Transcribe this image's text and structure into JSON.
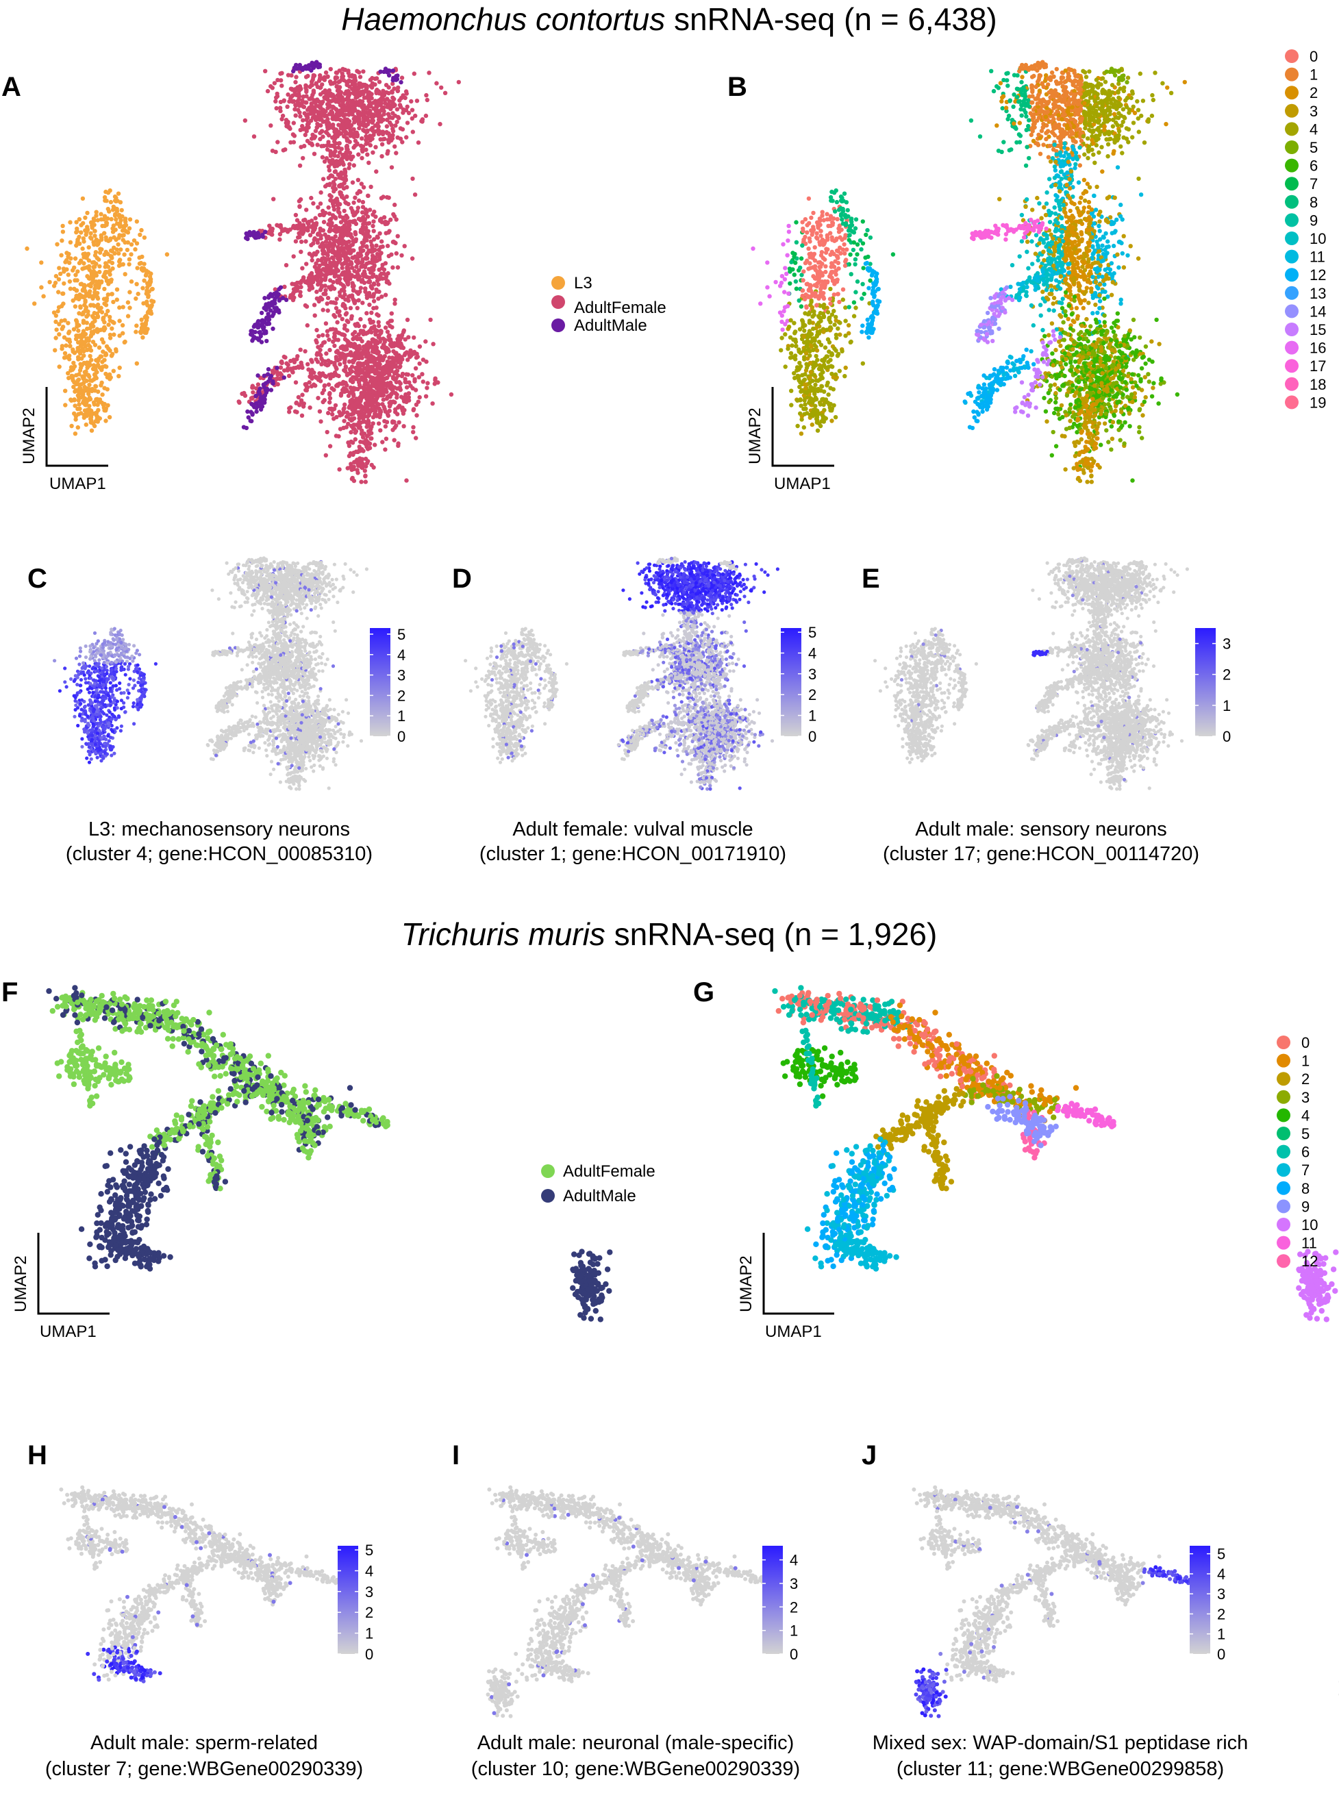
{
  "sections": [
    {
      "species": "Haemonchus contortus",
      "suffix": " snRNA-seq (n = 6,438)"
    },
    {
      "species": "Trichuris muris",
      "suffix": " snRNA-seq (n = 1,926)"
    }
  ],
  "axes": {
    "x": "UMAP1",
    "y": "UMAP2"
  },
  "colors": {
    "hc_clusters": [
      "#F8766D",
      "#EA8331",
      "#D89000",
      "#C09B00",
      "#A3A500",
      "#7CAE00",
      "#39B600",
      "#00BB4E",
      "#00BF7D",
      "#00C1A3",
      "#00BFC4",
      "#00BAE0",
      "#00B0F6",
      "#35A2FF",
      "#9590FF",
      "#C77CFF",
      "#E76BF3",
      "#FA62DB",
      "#FF62BC",
      "#FF6C91"
    ],
    "tm_clusters": [
      "#F8766D",
      "#E18A00",
      "#BE9C00",
      "#8CAB00",
      "#24B700",
      "#00BE70",
      "#00C1AB",
      "#00BBDA",
      "#00ACFC",
      "#8B93FF",
      "#D575FE",
      "#F962DD",
      "#FF65AC"
    ],
    "hc_stages": {
      "L3": "#F5A43A",
      "AdultFemale": "#D0466D",
      "AdultMale": "#6A1BA3"
    },
    "tm_stages": {
      "AdultFemale": "#7FD653",
      "AdultMale": "#353C78"
    },
    "expr_low": "#D3D3D3",
    "expr_high": "#2B1BFF"
  },
  "chart_data": [
    {
      "id": "A",
      "type": "scatter",
      "letter": "A",
      "color_by": "stage",
      "legend_position": "right",
      "legend": [
        {
          "name": "L3",
          "color": "#F5A43A"
        },
        {
          "name": "AdultFemale",
          "color": "#D0466D"
        },
        {
          "name": "AdultMale",
          "color": "#6A1BA3"
        }
      ]
    },
    {
      "id": "B",
      "type": "scatter",
      "letter": "B",
      "color_by": "cluster",
      "legend_position": "right",
      "legend": [
        "0",
        "1",
        "2",
        "3",
        "4",
        "5",
        "6",
        "7",
        "8",
        "9",
        "10",
        "11",
        "12",
        "13",
        "14",
        "15",
        "16",
        "17",
        "18",
        "19"
      ]
    },
    {
      "id": "C",
      "type": "scatter",
      "letter": "C",
      "color_by": "expression",
      "caption": [
        "L3: mechanosensory neurons",
        "(cluster 4; gene:HCON_00085310)"
      ],
      "colorbar": {
        "ticks": [
          "0",
          "1",
          "2",
          "3",
          "4",
          "5"
        ],
        "max": 5.3
      }
    },
    {
      "id": "D",
      "type": "scatter",
      "letter": "D",
      "color_by": "expression",
      "caption": [
        "Adult female: vulval muscle",
        "(cluster 1; gene:HCON_00171910)"
      ],
      "colorbar": {
        "ticks": [
          "0",
          "1",
          "2",
          "3",
          "4",
          "5"
        ],
        "max": 5.2
      }
    },
    {
      "id": "E",
      "type": "scatter",
      "letter": "E",
      "color_by": "expression",
      "caption": [
        "Adult male: sensory neurons",
        "(cluster 17; gene:HCON_00114720)"
      ],
      "colorbar": {
        "ticks": [
          "0",
          "1",
          "2",
          "3"
        ],
        "max": 3.5
      }
    },
    {
      "id": "F",
      "type": "scatter",
      "letter": "F",
      "color_by": "stage",
      "legend_position": "right",
      "legend": [
        {
          "name": "AdultFemale",
          "color": "#7FD653"
        },
        {
          "name": "AdultMale",
          "color": "#353C78"
        }
      ]
    },
    {
      "id": "G",
      "type": "scatter",
      "letter": "G",
      "color_by": "cluster",
      "legend_position": "right",
      "legend": [
        "0",
        "1",
        "2",
        "3",
        "4",
        "5",
        "6",
        "7",
        "8",
        "9",
        "10",
        "11",
        "12"
      ]
    },
    {
      "id": "H",
      "type": "scatter",
      "letter": "H",
      "color_by": "expression",
      "caption": [
        "Adult male: sperm-related",
        "(cluster 7; gene:WBGene00290339)"
      ],
      "colorbar": {
        "ticks": [
          "0",
          "1",
          "2",
          "3",
          "4",
          "5"
        ],
        "max": 5.2
      }
    },
    {
      "id": "I",
      "type": "scatter",
      "letter": "I",
      "color_by": "expression",
      "caption": [
        "Adult male: neuronal (male-specific)",
        "(cluster 10; gene:WBGene00290339)"
      ],
      "colorbar": {
        "ticks": [
          "0",
          "1",
          "2",
          "3",
          "4"
        ],
        "max": 4.6
      }
    },
    {
      "id": "J",
      "type": "scatter",
      "letter": "J",
      "color_by": "expression",
      "caption": [
        "Mixed sex: WAP-domain/S1 peptidase rich",
        "(cluster 11; gene:WBGene00299858)"
      ],
      "colorbar": {
        "ticks": [
          "0",
          "1",
          "2",
          "3",
          "4",
          "5"
        ],
        "max": 5.4
      }
    }
  ]
}
